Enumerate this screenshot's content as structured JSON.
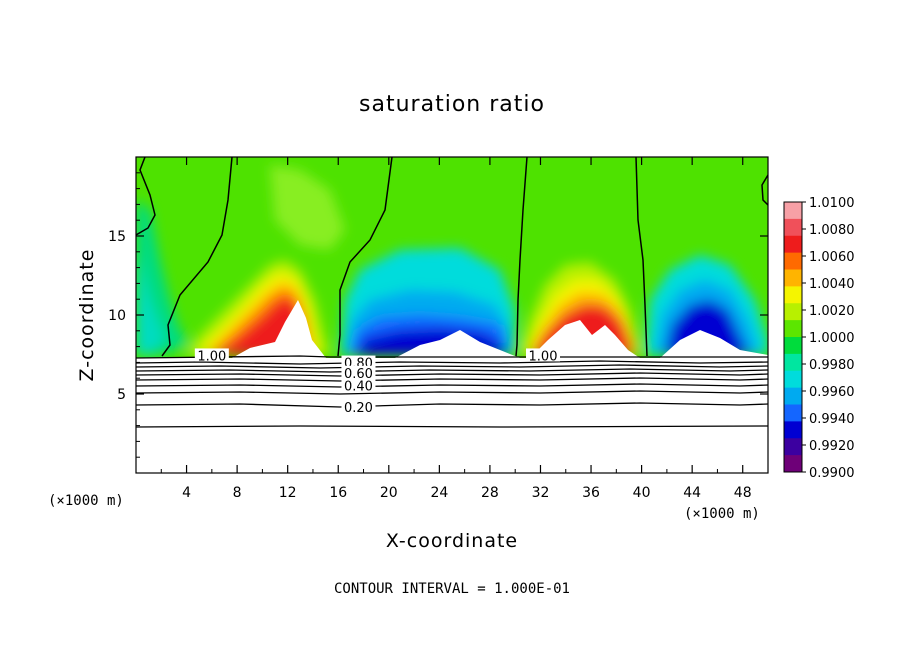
{
  "chart_data": {
    "type": "heatmap",
    "title": "saturation ratio",
    "xlabel": "X-coordinate",
    "ylabel": "Z-coordinate",
    "x_unit": "(×1000 m)",
    "x_unit_right": "(×1000 m)",
    "x_range": [
      0,
      50
    ],
    "y_range": [
      0,
      20
    ],
    "x_ticks": [
      4,
      8,
      12,
      16,
      20,
      24,
      28,
      32,
      36,
      40,
      44,
      48
    ],
    "y_ticks": [
      5,
      10,
      15
    ],
    "colorbar": {
      "range": [
        0.99,
        1.01
      ],
      "labels": [
        "1.0100",
        "1.0080",
        "1.0060",
        "1.0040",
        "1.0020",
        "1.0000",
        "0.9980",
        "0.9960",
        "0.9940",
        "0.9920",
        "0.9900"
      ],
      "colors": [
        "#f7a0a6",
        "#f0505a",
        "#ee1c1c",
        "#ff6a00",
        "#ffb400",
        "#f5f500",
        "#b8f000",
        "#5ce600",
        "#00dc3c",
        "#00e6a0",
        "#00dcdc",
        "#00aaf0",
        "#1466ff",
        "#0000d2",
        "#3c00a0",
        "#6e0078"
      ]
    },
    "contour_labels": [
      {
        "text": "1.00",
        "x": 6.0,
        "y": 7.25
      },
      {
        "text": "0.80",
        "x": 17.6,
        "y": 6.8
      },
      {
        "text": "0.60",
        "x": 17.6,
        "y": 6.15
      },
      {
        "text": "0.40",
        "x": 17.6,
        "y": 5.35
      },
      {
        "text": "0.20",
        "x": 17.6,
        "y": 4.0
      },
      {
        "text": "1.00",
        "x": 32.2,
        "y": 7.25
      }
    ],
    "contour_interval_text": "CONTOUR INTERVAL = 1.000E-01"
  }
}
